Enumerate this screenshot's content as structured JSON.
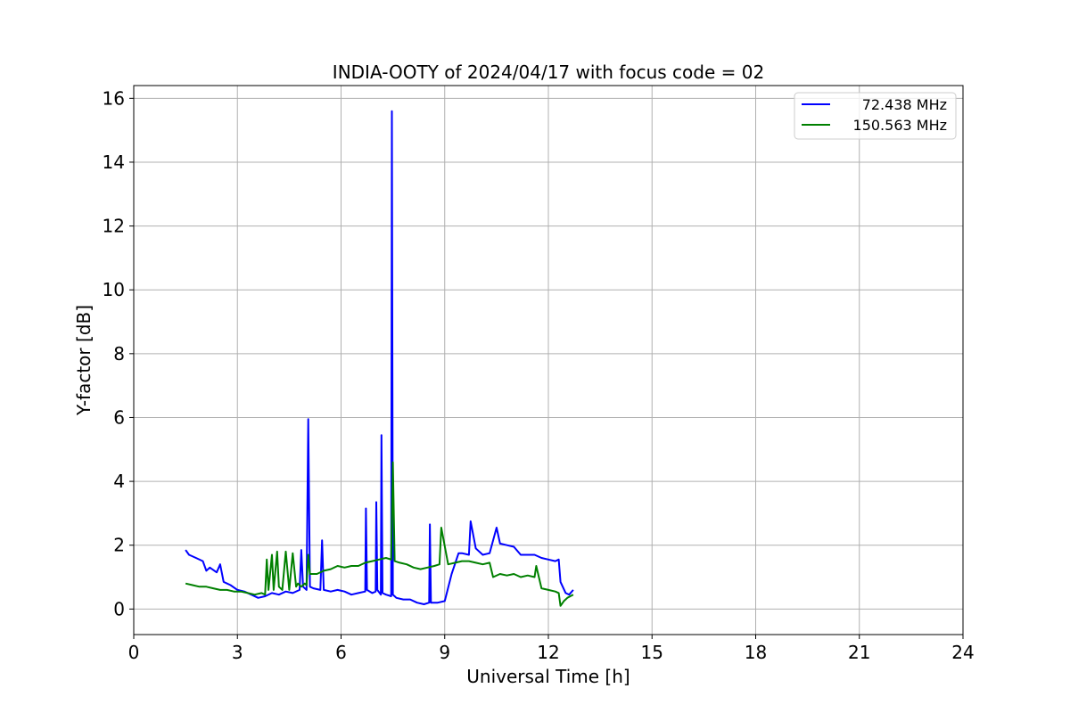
{
  "chart_data": {
    "type": "line",
    "title": "INDIA-OOTY of 2024/04/17 with focus code = 02",
    "xlabel": "Universal Time [h]",
    "ylabel": "Y-factor [dB]",
    "xlim": [
      0,
      24
    ],
    "ylim": [
      -0.8,
      16.4
    ],
    "xticks": [
      0,
      3,
      6,
      9,
      12,
      15,
      18,
      21,
      24
    ],
    "yticks": [
      0,
      2,
      4,
      6,
      8,
      10,
      12,
      14,
      16
    ],
    "grid": true,
    "legend_position": "top-right",
    "series": [
      {
        "name": "72.438 MHz",
        "color": "#0000ff",
        "x": [
          1.5,
          1.6,
          1.8,
          2.0,
          2.1,
          2.2,
          2.4,
          2.5,
          2.6,
          2.8,
          3.0,
          3.2,
          3.4,
          3.6,
          3.8,
          4.0,
          4.2,
          4.4,
          4.6,
          4.8,
          4.85,
          4.9,
          5.0,
          5.05,
          5.1,
          5.2,
          5.4,
          5.45,
          5.5,
          5.7,
          5.9,
          6.1,
          6.3,
          6.5,
          6.7,
          6.72,
          6.75,
          6.9,
          7.0,
          7.02,
          7.05,
          7.15,
          7.17,
          7.2,
          7.3,
          7.45,
          7.47,
          7.5,
          7.55,
          7.6,
          7.8,
          8.0,
          8.2,
          8.4,
          8.55,
          8.57,
          8.6,
          8.8,
          9.0,
          9.2,
          9.4,
          9.5,
          9.7,
          9.75,
          9.9,
          10.1,
          10.3,
          10.5,
          10.6,
          10.8,
          11.0,
          11.2,
          11.4,
          11.6,
          11.8,
          12.0,
          12.2,
          12.3,
          12.35,
          12.5,
          12.6,
          12.72
        ],
        "y": [
          1.85,
          1.7,
          1.6,
          1.5,
          1.2,
          1.3,
          1.15,
          1.4,
          0.85,
          0.75,
          0.6,
          0.55,
          0.45,
          0.35,
          0.4,
          0.5,
          0.45,
          0.55,
          0.5,
          0.6,
          1.85,
          0.7,
          0.6,
          5.95,
          0.7,
          0.65,
          0.6,
          2.15,
          0.6,
          0.55,
          0.6,
          0.55,
          0.45,
          0.5,
          0.55,
          3.15,
          0.6,
          0.5,
          0.55,
          3.35,
          0.6,
          0.45,
          5.45,
          0.5,
          0.45,
          0.4,
          15.6,
          0.45,
          0.4,
          0.35,
          0.3,
          0.3,
          0.2,
          0.15,
          0.2,
          2.65,
          0.2,
          0.2,
          0.25,
          1.1,
          1.75,
          1.75,
          1.7,
          2.75,
          1.9,
          1.7,
          1.75,
          2.55,
          2.05,
          2.0,
          1.95,
          1.7,
          1.7,
          1.7,
          1.6,
          1.55,
          1.5,
          1.55,
          0.85,
          0.5,
          0.45,
          0.6
        ]
      },
      {
        "name": "150.563 MHz",
        "color": "#008000",
        "x": [
          1.5,
          1.7,
          1.9,
          2.1,
          2.3,
          2.5,
          2.7,
          2.9,
          3.1,
          3.3,
          3.5,
          3.7,
          3.8,
          3.85,
          3.9,
          4.0,
          4.05,
          4.15,
          4.2,
          4.3,
          4.4,
          4.5,
          4.6,
          4.7,
          4.75,
          4.85,
          4.95,
          5.0,
          5.05,
          5.1,
          5.3,
          5.5,
          5.7,
          5.9,
          6.1,
          6.3,
          6.5,
          6.7,
          6.9,
          7.1,
          7.3,
          7.45,
          7.5,
          7.55,
          7.7,
          7.9,
          8.1,
          8.3,
          8.5,
          8.7,
          8.85,
          8.9,
          9.1,
          9.3,
          9.5,
          9.7,
          9.9,
          10.1,
          10.3,
          10.4,
          10.6,
          10.8,
          11.0,
          11.2,
          11.4,
          11.6,
          11.65,
          11.8,
          12.0,
          12.2,
          12.3,
          12.35,
          12.45,
          12.55,
          12.72
        ],
        "y": [
          0.8,
          0.75,
          0.7,
          0.7,
          0.65,
          0.6,
          0.6,
          0.55,
          0.55,
          0.5,
          0.45,
          0.5,
          0.45,
          1.55,
          0.6,
          1.7,
          0.6,
          1.8,
          0.7,
          0.6,
          1.8,
          0.6,
          1.75,
          0.7,
          0.8,
          0.7,
          0.8,
          0.75,
          1.7,
          1.1,
          1.1,
          1.2,
          1.25,
          1.35,
          1.3,
          1.35,
          1.35,
          1.45,
          1.5,
          1.55,
          1.6,
          1.55,
          4.6,
          1.5,
          1.45,
          1.4,
          1.3,
          1.25,
          1.3,
          1.35,
          1.4,
          2.55,
          1.4,
          1.45,
          1.5,
          1.5,
          1.45,
          1.4,
          1.45,
          1.0,
          1.1,
          1.05,
          1.1,
          1.0,
          1.05,
          1.0,
          1.35,
          0.65,
          0.6,
          0.55,
          0.5,
          0.1,
          0.25,
          0.35,
          0.45
        ]
      }
    ]
  }
}
